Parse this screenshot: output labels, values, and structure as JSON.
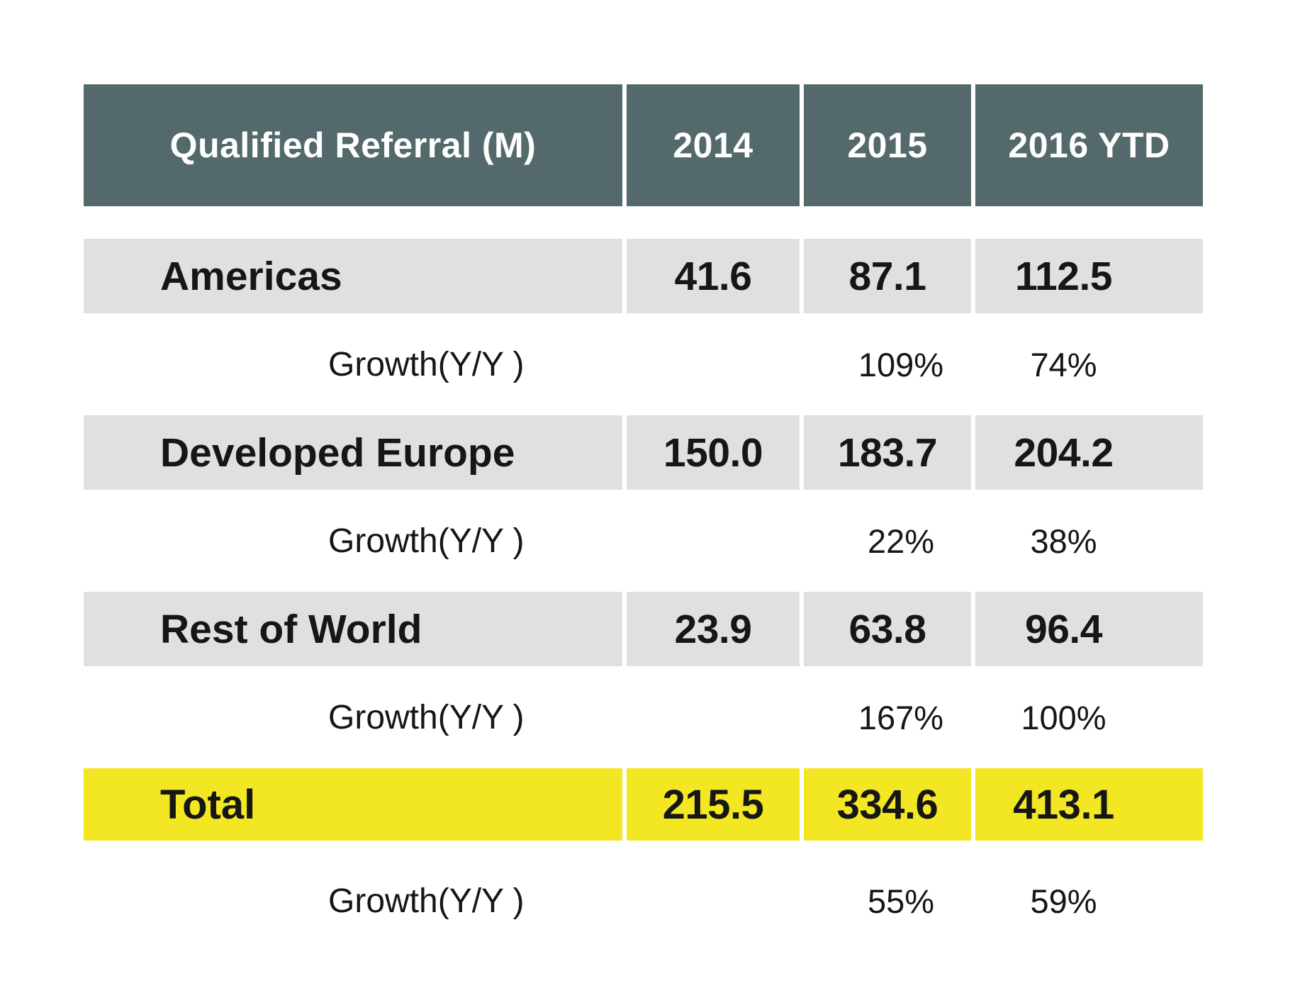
{
  "chart_data": {
    "type": "table",
    "title": "Qualified Referral (M)",
    "columns": [
      "2014",
      "2015",
      "2016 YTD"
    ],
    "rows": [
      {
        "label": "Americas",
        "values": [
          41.6,
          87.1,
          112.5
        ]
      },
      {
        "label": "Growth(Y/Y)",
        "values": [
          null,
          "109%",
          "74%"
        ]
      },
      {
        "label": "Developed Europe",
        "values": [
          150.0,
          183.7,
          204.2
        ]
      },
      {
        "label": "Growth(Y/Y)",
        "values": [
          null,
          "22%",
          "38%"
        ]
      },
      {
        "label": "Rest of World",
        "values": [
          23.9,
          63.8,
          96.4
        ]
      },
      {
        "label": "Growth(Y/Y)",
        "values": [
          null,
          "167%",
          "100%"
        ]
      },
      {
        "label": "Total",
        "values": [
          215.5,
          334.6,
          413.1
        ]
      },
      {
        "label": "Growth(Y/Y)",
        "values": [
          null,
          "55%",
          "59%"
        ]
      }
    ],
    "layout": {
      "grid": false,
      "legend": false,
      "highlight_row": "Total",
      "header_style": "dark-teal",
      "body_row_style": "light-gray"
    }
  },
  "header": {
    "title": "Qualified Referral (M)",
    "y2014": "2014",
    "y2015": "2015",
    "y2016": "2016 YTD"
  },
  "rows": {
    "americas": {
      "label": "Americas",
      "v2014": "41.6",
      "v2015": "87.1",
      "v2016": "112.5"
    },
    "americas_growth": {
      "label": "Growth(Y/Y )",
      "v2015": "109%",
      "v2016": "74%"
    },
    "europe": {
      "label": "Developed Europe",
      "v2014": "150.0",
      "v2015": "183.7",
      "v2016": "204.2"
    },
    "europe_growth": {
      "label": "Growth(Y/Y )",
      "v2015": "22%",
      "v2016": "38%"
    },
    "restofworld": {
      "label": "Rest of World",
      "v2014": "23.9",
      "v2015": "63.8",
      "v2016": "96.4"
    },
    "restofworld_growth": {
      "label": "Growth(Y/Y )",
      "v2015": "167%",
      "v2016": "100%"
    },
    "total": {
      "label": "Total",
      "v2014": "215.5",
      "v2015": "334.6",
      "v2016": "413.1"
    },
    "total_growth": {
      "label": "Growth(Y/Y )",
      "v2015": "55%",
      "v2016": "59%"
    }
  },
  "colors": {
    "header_bg": "#53696B",
    "header_text": "#FFFFFF",
    "row_bg": "#E0E0E2",
    "total_bg": "#F3E723",
    "body_text": "#161616",
    "page_bg": "#FFFFFF"
  }
}
